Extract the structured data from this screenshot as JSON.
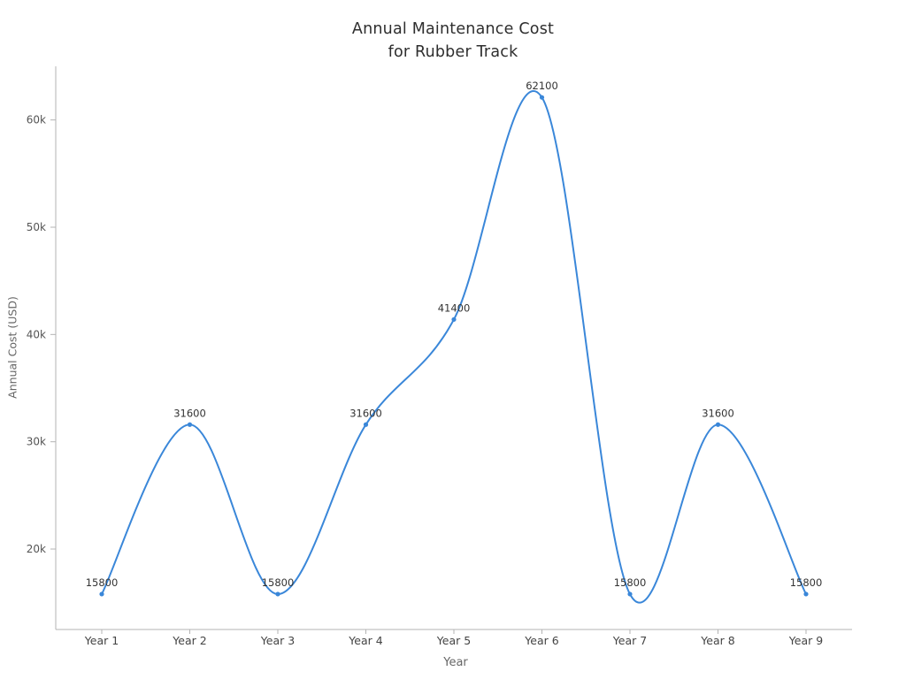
{
  "title": {
    "line1": "Annual Maintenance Cost",
    "line2": "for Rubber Track"
  },
  "axes": {
    "x_label": "Year",
    "y_label": "Annual Cost (USD)",
    "y_ticks": [
      {
        "label": "20k",
        "value": 20000
      },
      {
        "label": "30k",
        "value": 30000
      },
      {
        "label": "40k",
        "value": 40000
      },
      {
        "label": "50k",
        "value": 50000
      },
      {
        "label": "60k",
        "value": 60000
      }
    ]
  },
  "colors": {
    "line": "#3a87d9",
    "axis": "#b3b3b3",
    "tick_text": "#555555",
    "category_text": "#444444",
    "point_label_text": "#333333"
  },
  "chart_data": {
    "type": "line",
    "title": "Annual Maintenance Cost for Rubber Track",
    "xlabel": "Year",
    "ylabel": "Annual Cost (USD)",
    "categories": [
      "Year 1",
      "Year 2",
      "Year 3",
      "Year 4",
      "Year 5",
      "Year 6",
      "Year 7",
      "Year 8",
      "Year 9"
    ],
    "values": [
      15800,
      31600,
      15800,
      31600,
      41400,
      62100,
      15800,
      31600,
      15800
    ],
    "point_labels": [
      "15800",
      "31600",
      "15800",
      "31600",
      "41400",
      "62100",
      "15800",
      "31600",
      "15800"
    ],
    "ylim": [
      12500,
      65000
    ],
    "grid": false,
    "smooth": true,
    "legend": "none",
    "marker": "dot"
  }
}
